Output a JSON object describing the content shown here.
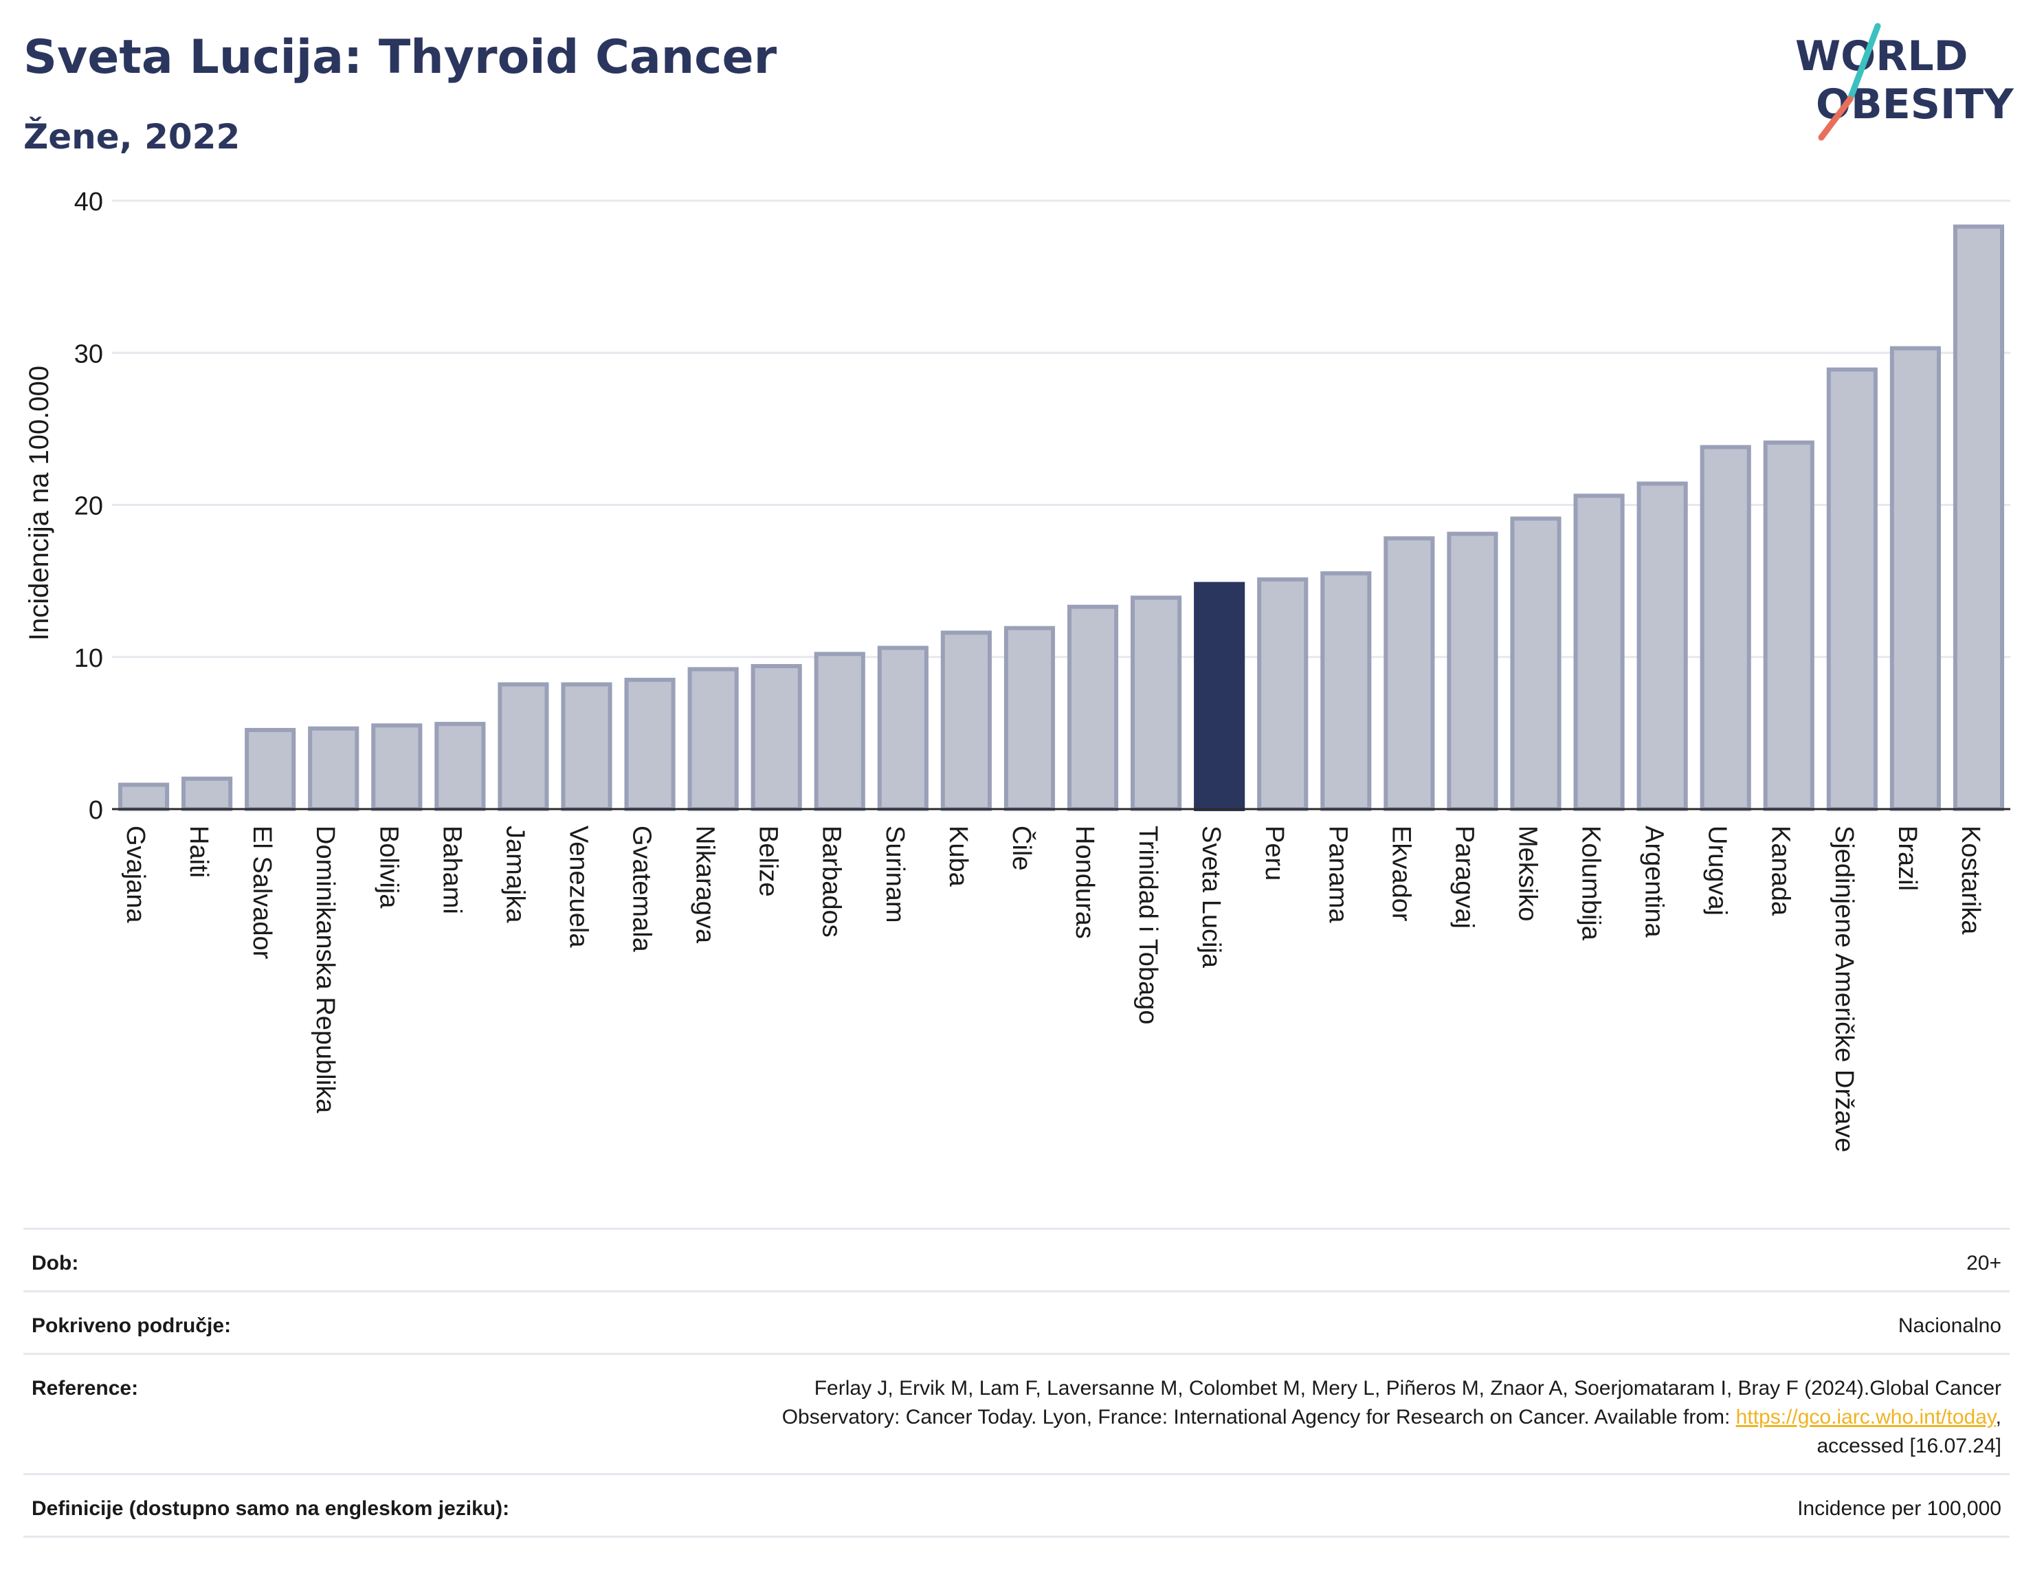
{
  "header": {
    "title": "Sveta Lucija: Thyroid Cancer",
    "subtitle": "Žene, 2022"
  },
  "logo": {
    "line1": "WORLD",
    "line2": "OBESITY",
    "accent_colors": [
      "#3cc0c0",
      "#e8705a"
    ]
  },
  "colors": {
    "bar": "#bfc3d0",
    "bar_stroke": "#9aa0b8",
    "highlight": "#2b365e",
    "grid": "#e6e8ee",
    "axis": "#2b2b2b",
    "text": "#1a1a1a"
  },
  "chart_data": {
    "type": "bar",
    "ylabel": "Incidencija na 100.000",
    "ylim": [
      0,
      40
    ],
    "yticks": [
      0,
      10,
      20,
      30,
      40
    ],
    "grid": true,
    "highlight": "Sveta Lucija",
    "categories": [
      "Gvajana",
      "Haiti",
      "El Salvador",
      "Dominikanska Republika",
      "Bolivija",
      "Bahami",
      "Jamajka",
      "Venezuela",
      "Gvatemala",
      "Nikaragva",
      "Belize",
      "Barbados",
      "Surinam",
      "Kuba",
      "Čile",
      "Honduras",
      "Trinidad i Tobago",
      "Sveta Lucija",
      "Peru",
      "Panama",
      "Ekvador",
      "Paragvaj",
      "Meksiko",
      "Kolumbija",
      "Argentina",
      "Urugvaj",
      "Kanada",
      "Sjedinjene Američke Države",
      "Brazil",
      "Kostarika"
    ],
    "values": [
      1.6,
      2.0,
      5.2,
      5.3,
      5.5,
      5.6,
      8.2,
      8.2,
      8.5,
      9.2,
      9.4,
      10.2,
      10.6,
      11.6,
      11.9,
      13.3,
      13.9,
      14.8,
      15.1,
      15.5,
      17.8,
      18.1,
      19.1,
      20.6,
      21.4,
      23.8,
      24.1,
      28.9,
      30.3,
      38.3
    ]
  },
  "meta": {
    "age_label": "Dob:",
    "age_value": "20+",
    "coverage_label": "Pokriveno područje:",
    "coverage_value": "Nacionalno",
    "reference_label": "Reference:",
    "reference_text1": "Ferlay J, Ervik M, Lam F, Laversanne M, Colombet M, Mery L, Piñeros M, Znaor A, Soerjomataram I, Bray F (2024).Global Cancer",
    "reference_text2": "Observatory: Cancer Today. Lyon, France: International Agency for Research on Cancer. Available from: ",
    "reference_link": "https://gco.iarc.who.int/today",
    "reference_text3": ",",
    "reference_text4": "accessed [16.07.24]",
    "definitions_label": "Definicije (dostupno samo na engleskom jeziku):",
    "definitions_value": "Incidence per 100,000"
  }
}
